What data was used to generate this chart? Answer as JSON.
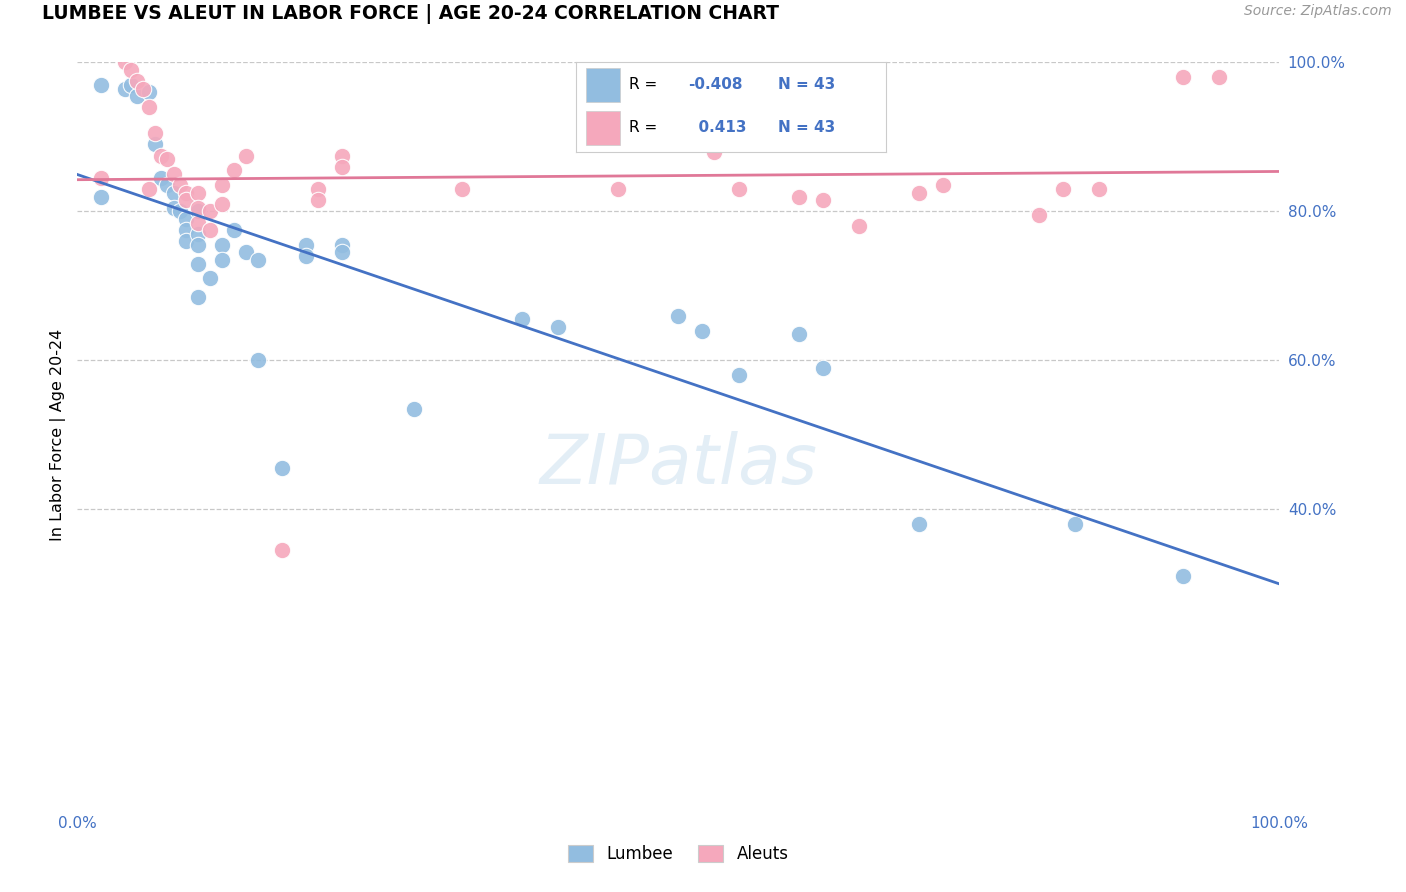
{
  "title": "LUMBEE VS ALEUT IN LABOR FORCE | AGE 20-24 CORRELATION CHART",
  "source_text": "Source: ZipAtlas.com",
  "ylabel": "In Labor Force | Age 20-24",
  "xlim": [
    0.0,
    1.0
  ],
  "ylim": [
    0.0,
    1.0
  ],
  "lumbee_R": -0.408,
  "lumbee_N": 43,
  "aleut_R": 0.413,
  "aleut_N": 43,
  "lumbee_color": "#92bde0",
  "aleut_color": "#f5a8bc",
  "lumbee_line_color": "#4472c4",
  "aleut_line_color": "#e07898",
  "lumbee_scatter": [
    [
      0.02,
      0.97
    ],
    [
      0.04,
      0.965
    ],
    [
      0.045,
      0.97
    ],
    [
      0.05,
      0.955
    ],
    [
      0.06,
      0.96
    ],
    [
      0.065,
      0.89
    ],
    [
      0.07,
      0.845
    ],
    [
      0.075,
      0.835
    ],
    [
      0.08,
      0.825
    ],
    [
      0.08,
      0.805
    ],
    [
      0.085,
      0.8
    ],
    [
      0.09,
      0.79
    ],
    [
      0.09,
      0.775
    ],
    [
      0.09,
      0.76
    ],
    [
      0.1,
      0.8
    ],
    [
      0.1,
      0.77
    ],
    [
      0.1,
      0.755
    ],
    [
      0.1,
      0.73
    ],
    [
      0.11,
      0.71
    ],
    [
      0.12,
      0.755
    ],
    [
      0.12,
      0.735
    ],
    [
      0.13,
      0.775
    ],
    [
      0.14,
      0.745
    ],
    [
      0.15,
      0.735
    ],
    [
      0.15,
      0.6
    ],
    [
      0.17,
      0.455
    ],
    [
      0.19,
      0.755
    ],
    [
      0.19,
      0.74
    ],
    [
      0.22,
      0.755
    ],
    [
      0.22,
      0.745
    ],
    [
      0.28,
      0.535
    ],
    [
      0.37,
      0.655
    ],
    [
      0.4,
      0.645
    ],
    [
      0.5,
      0.66
    ],
    [
      0.52,
      0.64
    ],
    [
      0.55,
      0.58
    ],
    [
      0.6,
      0.635
    ],
    [
      0.62,
      0.59
    ],
    [
      0.7,
      0.38
    ],
    [
      0.83,
      0.38
    ],
    [
      0.92,
      0.31
    ],
    [
      0.1,
      0.685
    ],
    [
      0.02,
      0.82
    ]
  ],
  "aleut_scatter": [
    [
      0.02,
      0.845
    ],
    [
      0.04,
      1.0
    ],
    [
      0.045,
      0.99
    ],
    [
      0.05,
      0.975
    ],
    [
      0.055,
      0.965
    ],
    [
      0.06,
      0.94
    ],
    [
      0.065,
      0.905
    ],
    [
      0.07,
      0.875
    ],
    [
      0.075,
      0.87
    ],
    [
      0.08,
      0.85
    ],
    [
      0.085,
      0.835
    ],
    [
      0.09,
      0.825
    ],
    [
      0.09,
      0.815
    ],
    [
      0.1,
      0.825
    ],
    [
      0.1,
      0.805
    ],
    [
      0.1,
      0.785
    ],
    [
      0.11,
      0.8
    ],
    [
      0.11,
      0.775
    ],
    [
      0.12,
      0.835
    ],
    [
      0.12,
      0.81
    ],
    [
      0.13,
      0.855
    ],
    [
      0.14,
      0.875
    ],
    [
      0.17,
      0.345
    ],
    [
      0.2,
      0.83
    ],
    [
      0.2,
      0.815
    ],
    [
      0.22,
      0.875
    ],
    [
      0.22,
      0.86
    ],
    [
      0.32,
      0.83
    ],
    [
      0.45,
      0.83
    ],
    [
      0.53,
      0.88
    ],
    [
      0.55,
      0.83
    ],
    [
      0.6,
      0.82
    ],
    [
      0.62,
      0.815
    ],
    [
      0.65,
      0.905
    ],
    [
      0.65,
      0.78
    ],
    [
      0.7,
      0.825
    ],
    [
      0.72,
      0.835
    ],
    [
      0.8,
      0.795
    ],
    [
      0.82,
      0.83
    ],
    [
      0.85,
      0.83
    ],
    [
      0.92,
      0.98
    ],
    [
      0.95,
      0.98
    ],
    [
      0.06,
      0.83
    ]
  ],
  "ytick_positions": [
    0.4,
    0.6,
    0.8,
    1.0
  ],
  "ytick_labels": [
    "40.0%",
    "60.0%",
    "80.0%",
    "100.0%"
  ],
  "xtick_positions": [
    0.0,
    1.0
  ],
  "xtick_labels": [
    "0.0%",
    "100.0%"
  ],
  "background_color": "#ffffff",
  "grid_color": "#c8c8c8",
  "label_color": "#4472c4",
  "watermark_color": "#cce0f0"
}
